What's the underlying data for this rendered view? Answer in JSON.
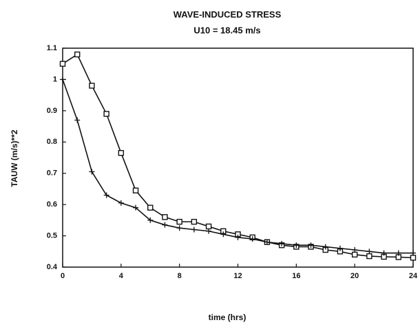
{
  "chart_data": {
    "type": "line",
    "title": "WAVE-INDUCED STRESS",
    "subtitle": "U10 = 18.45 m/s",
    "xlabel": "time (hrs)",
    "ylabel": "TAUW (m/s)**2",
    "x": [
      0,
      1,
      2,
      3,
      4,
      5,
      6,
      7,
      8,
      9,
      10,
      11,
      12,
      13,
      14,
      15,
      16,
      17,
      18,
      19,
      20,
      21,
      22,
      23,
      24
    ],
    "series": [
      {
        "color": "#111111",
        "marker": "square",
        "values": [
          1.05,
          1.08,
          0.98,
          0.89,
          0.765,
          0.645,
          0.59,
          0.56,
          0.545,
          0.545,
          0.53,
          0.515,
          0.505,
          0.495,
          0.48,
          0.47,
          0.465,
          0.465,
          0.455,
          0.45,
          0.44,
          0.435,
          0.433,
          0.432,
          0.43
        ]
      },
      {
        "color": "#111111",
        "marker": "plus",
        "values": [
          1.0,
          0.87,
          0.705,
          0.63,
          0.605,
          0.59,
          0.55,
          0.535,
          0.525,
          0.52,
          0.515,
          0.505,
          0.495,
          0.49,
          0.48,
          0.475,
          0.47,
          0.47,
          0.465,
          0.46,
          0.455,
          0.45,
          0.445,
          0.445,
          0.445
        ]
      }
    ],
    "xlim": [
      0,
      24
    ],
    "xticks": [
      0,
      4,
      8,
      12,
      16,
      20,
      24
    ],
    "ylim": [
      0.4,
      1.1
    ],
    "yticks": [
      0.4,
      0.5,
      0.6,
      0.7,
      0.8,
      0.9,
      1,
      1.1
    ],
    "grid": false
  }
}
